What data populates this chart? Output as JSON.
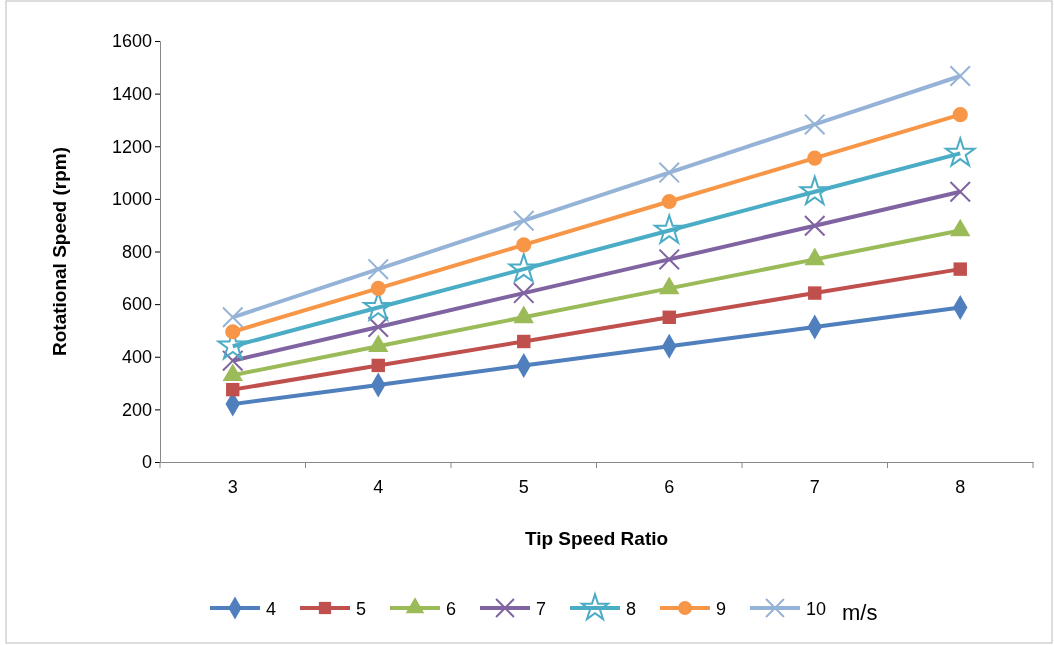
{
  "chart_data": {
    "type": "line",
    "xlabel": "Tip Speed Ratio",
    "ylabel": "Rotational Speed (rpm)",
    "legend_title": "m/s",
    "legend": "bottom",
    "grid": false,
    "categories": [
      "3",
      "4",
      "5",
      "6",
      "7",
      "8"
    ],
    "ylim": [
      0,
      1600
    ],
    "yticks": [
      0,
      200,
      400,
      600,
      800,
      1000,
      1200,
      1400,
      1600
    ],
    "series": [
      {
        "name": "4",
        "color": "#4f7fbd",
        "marker": "diamond",
        "values": [
          220,
          293,
          367,
          440,
          513,
          587
        ]
      },
      {
        "name": "5",
        "color": "#c0504d",
        "marker": "square",
        "values": [
          275,
          367,
          458,
          550,
          642,
          733
        ]
      },
      {
        "name": "6",
        "color": "#9bbb59",
        "marker": "triangle",
        "values": [
          330,
          440,
          550,
          660,
          770,
          880
        ]
      },
      {
        "name": "7",
        "color": "#8064a2",
        "marker": "cross",
        "values": [
          385,
          513,
          642,
          770,
          898,
          1027
        ]
      },
      {
        "name": "8",
        "color": "#4bacc6",
        "marker": "star",
        "values": [
          440,
          587,
          733,
          880,
          1027,
          1173
        ]
      },
      {
        "name": "9",
        "color": "#f79646",
        "marker": "circle",
        "values": [
          495,
          660,
          825,
          990,
          1155,
          1320
        ]
      },
      {
        "name": "10",
        "color": "#95b3d7",
        "marker": "cross",
        "values": [
          550,
          733,
          917,
          1100,
          1283,
          1467
        ]
      }
    ]
  }
}
